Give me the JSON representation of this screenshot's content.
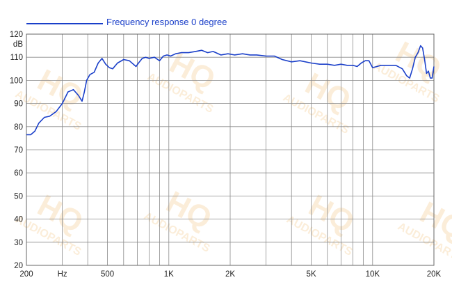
{
  "legend": {
    "label": "Frequency response 0 degree",
    "color": "#1a3fc9"
  },
  "watermark": {
    "big": "HQ",
    "small": "AUDIOPARTS"
  },
  "chart_data": {
    "type": "line",
    "title": "",
    "xlabel": "",
    "ylabel": "dB",
    "x_scale": "log",
    "xlim": [
      200,
      20000
    ],
    "ylim": [
      20,
      120
    ],
    "grid": true,
    "legend_position": "top-left",
    "x_ticks": [
      {
        "value": 200,
        "label": "200"
      },
      {
        "value": 300,
        "label": "Hz"
      },
      {
        "value": 500,
        "label": "500"
      },
      {
        "value": 1000,
        "label": "1K"
      },
      {
        "value": 2000,
        "label": "2K"
      },
      {
        "value": 5000,
        "label": "5K"
      },
      {
        "value": 10000,
        "label": "10K"
      },
      {
        "value": 20000,
        "label": "20K"
      }
    ],
    "y_ticks": [
      20,
      30,
      40,
      50,
      60,
      70,
      80,
      90,
      100,
      110,
      120
    ],
    "series": [
      {
        "name": "Frequency response 0 degree",
        "color": "#1a3fc9",
        "x": [
          200,
          210,
          220,
          230,
          245,
          260,
          280,
          300,
          320,
          340,
          360,
          375,
          385,
          395,
          410,
          430,
          450,
          470,
          490,
          510,
          530,
          560,
          600,
          640,
          690,
          710,
          740,
          770,
          800,
          850,
          900,
          940,
          980,
          1020,
          1080,
          1150,
          1250,
          1350,
          1450,
          1550,
          1650,
          1800,
          1950,
          2100,
          2300,
          2500,
          2700,
          3000,
          3300,
          3600,
          4000,
          4400,
          5000,
          5500,
          6000,
          6500,
          7000,
          7500,
          8000,
          8400,
          8800,
          9200,
          9600,
          10000,
          10500,
          11000,
          12000,
          13000,
          14000,
          14700,
          15200,
          15700,
          16200,
          16700,
          17200,
          17600,
          18000,
          18400,
          18800,
          19200,
          19600,
          20000
        ],
        "y": [
          76.5,
          76.5,
          78,
          81.5,
          84,
          84.5,
          86.5,
          90,
          95,
          96,
          93.5,
          91,
          95,
          100,
          102.5,
          103.5,
          107.5,
          109.5,
          107,
          105.5,
          105,
          107.5,
          109,
          108.5,
          106,
          107.5,
          109.5,
          110,
          109.5,
          110,
          108.5,
          110.5,
          111,
          110.5,
          111.5,
          112,
          112,
          112.5,
          113,
          112,
          112.5,
          111,
          111.5,
          111,
          111.5,
          111,
          111,
          110.5,
          110.5,
          109,
          108,
          108.5,
          107.5,
          107,
          107,
          106.5,
          107,
          106.5,
          106.5,
          106,
          107.5,
          108.5,
          108.5,
          105.5,
          106,
          106.5,
          106.5,
          106.5,
          105,
          102,
          101,
          105,
          110,
          112,
          115,
          114,
          109,
          103,
          104,
          101,
          101,
          106
        ]
      }
    ]
  }
}
